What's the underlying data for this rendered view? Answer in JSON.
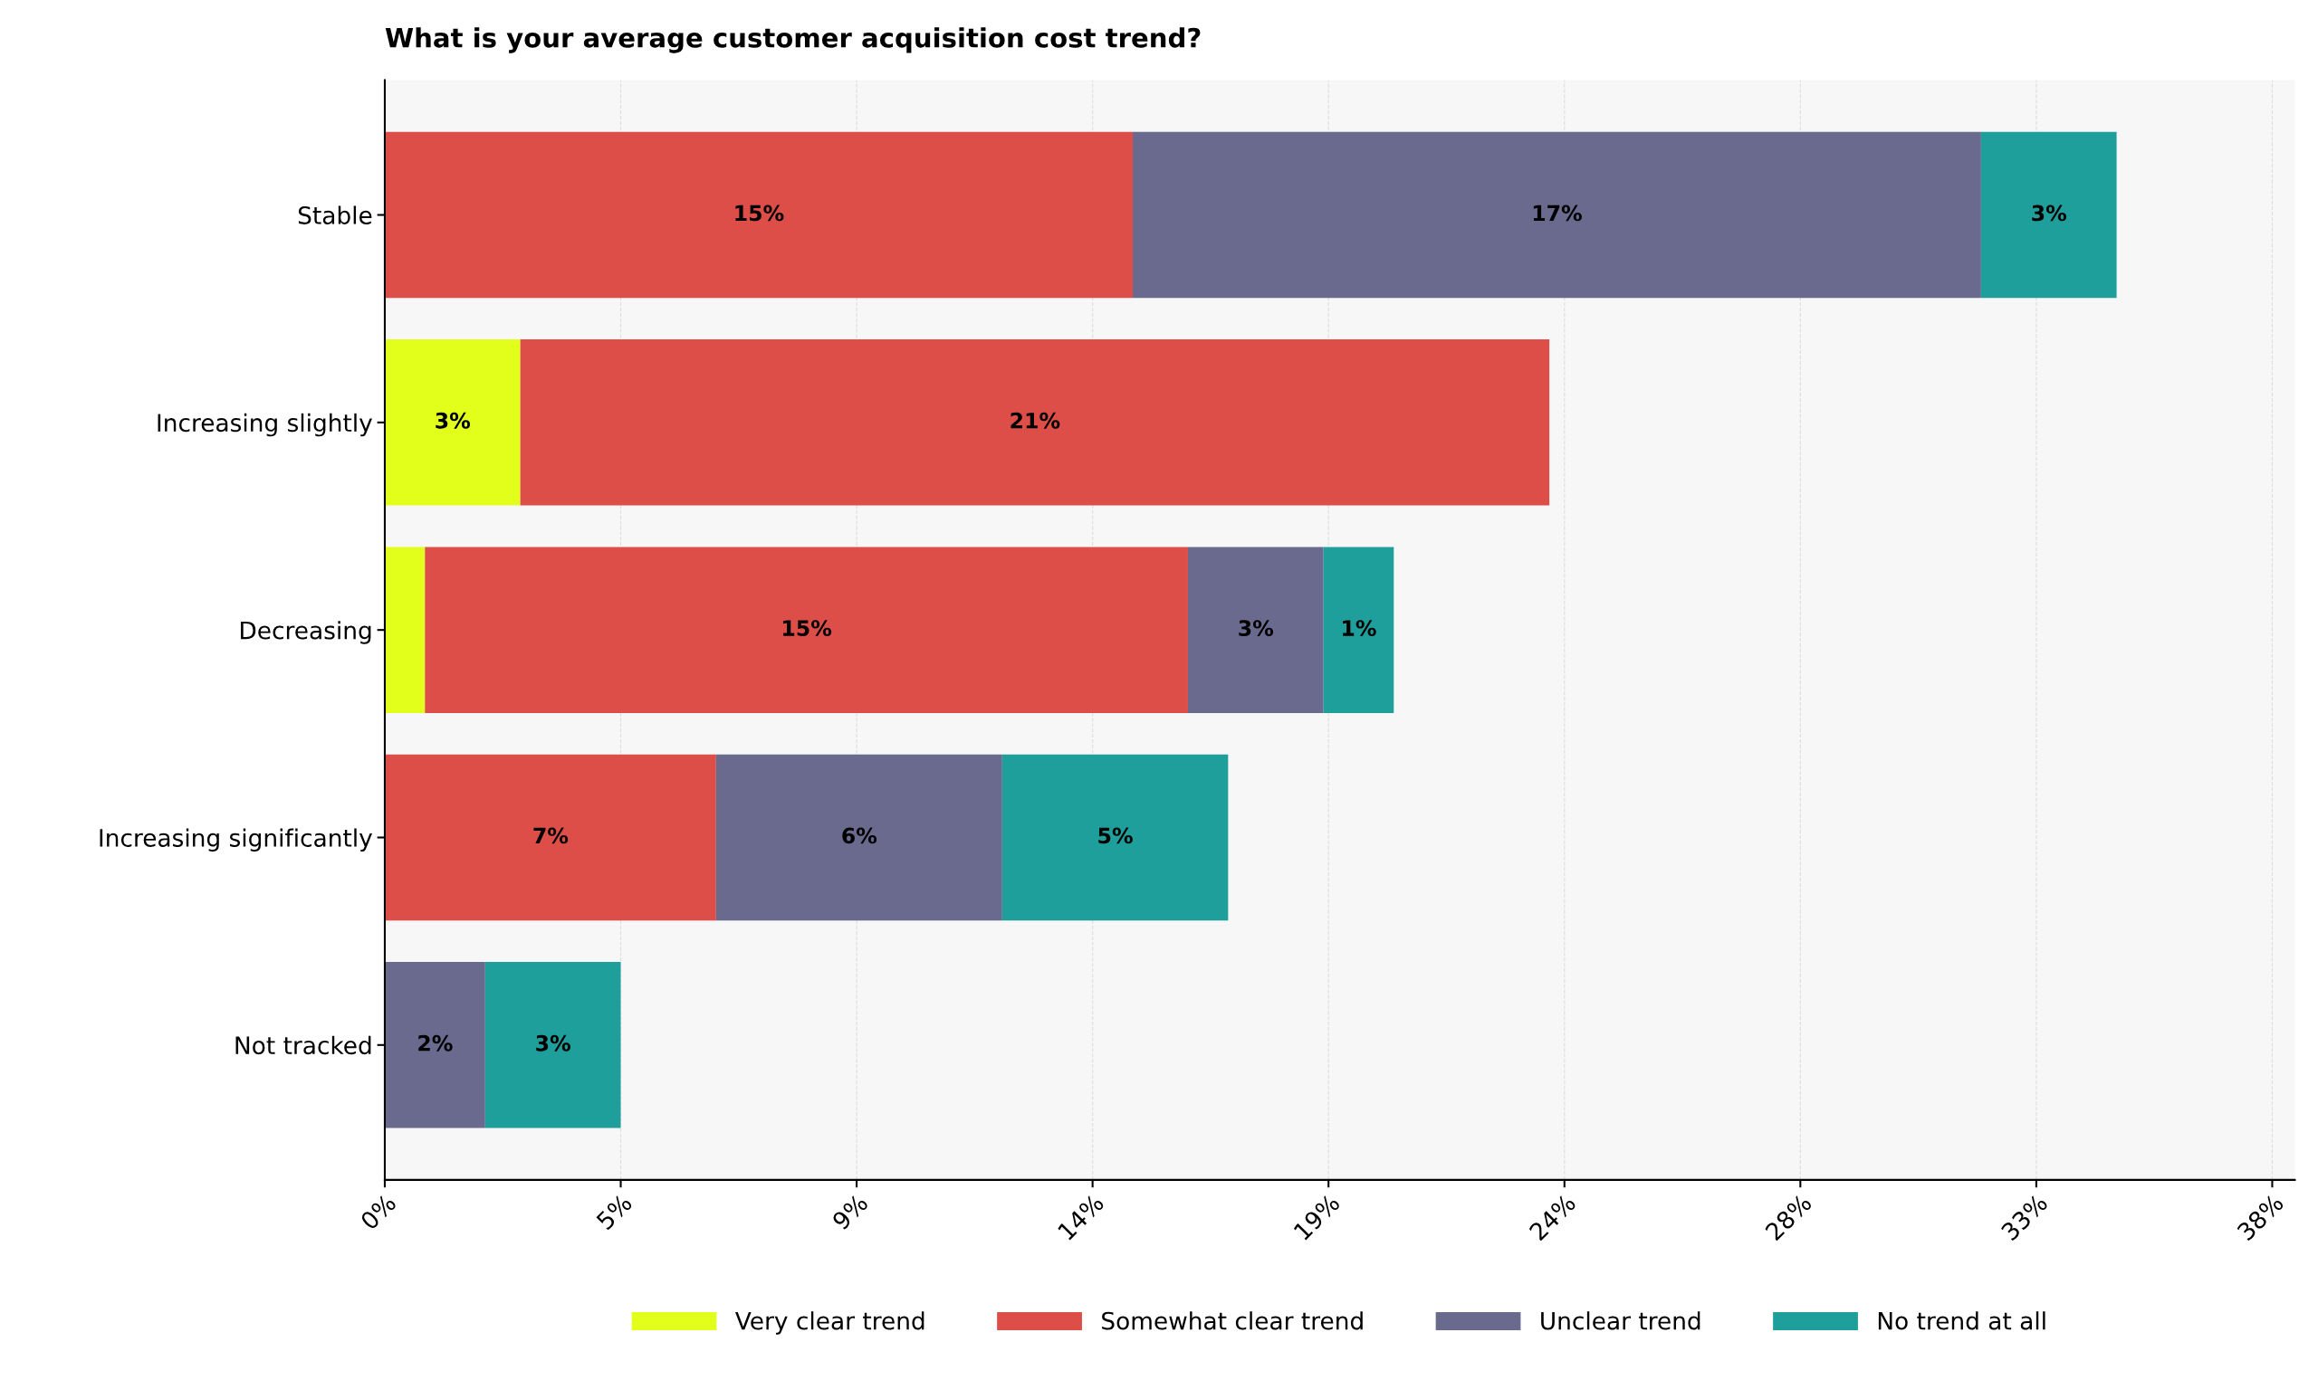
{
  "chart_data": {
    "type": "bar",
    "orientation": "horizontal",
    "stacked": true,
    "title": "What is your average customer acquisition cost trend?",
    "categories": [
      "Stable",
      "Increasing slightly",
      "Decreasing",
      "Increasing significantly",
      "Not tracked"
    ],
    "series": [
      {
        "name": "Very clear trend",
        "color": "#e2ff1c",
        "values": [
          null,
          2.7,
          0.8,
          null,
          null
        ],
        "value_labels": [
          null,
          "3%",
          null,
          null,
          null
        ]
      },
      {
        "name": "Somewhat clear trend",
        "color": "#de4e48",
        "values": [
          14.9,
          20.5,
          15.2,
          6.6,
          null
        ],
        "value_labels": [
          "15%",
          "21%",
          "15%",
          "7%",
          null
        ]
      },
      {
        "name": "Unclear trend",
        "color": "#6a6a8f",
        "values": [
          16.9,
          null,
          2.7,
          5.7,
          2.0
        ],
        "value_labels": [
          "17%",
          null,
          "3%",
          "6%",
          "2%"
        ]
      },
      {
        "name": "No trend at all",
        "color": "#1f9f9c",
        "values": [
          2.7,
          null,
          1.4,
          4.5,
          2.7
        ],
        "value_labels": [
          "3%",
          null,
          "1%",
          "5%",
          "3%"
        ]
      }
    ],
    "xlim": [
      0,
      38.05
    ],
    "xticks": [
      {
        "value": 0,
        "label": "0%"
      },
      {
        "value": 4.7,
        "label": "5%"
      },
      {
        "value": 9.4,
        "label": "9%"
      },
      {
        "value": 14.1,
        "label": "14%"
      },
      {
        "value": 18.8,
        "label": "19%"
      },
      {
        "value": 23.5,
        "label": "24%"
      },
      {
        "value": 28.2,
        "label": "28%"
      },
      {
        "value": 32.9,
        "label": "33%"
      },
      {
        "value": 37.6,
        "label": "38%"
      }
    ],
    "grid": "x",
    "legend": "bottom"
  }
}
